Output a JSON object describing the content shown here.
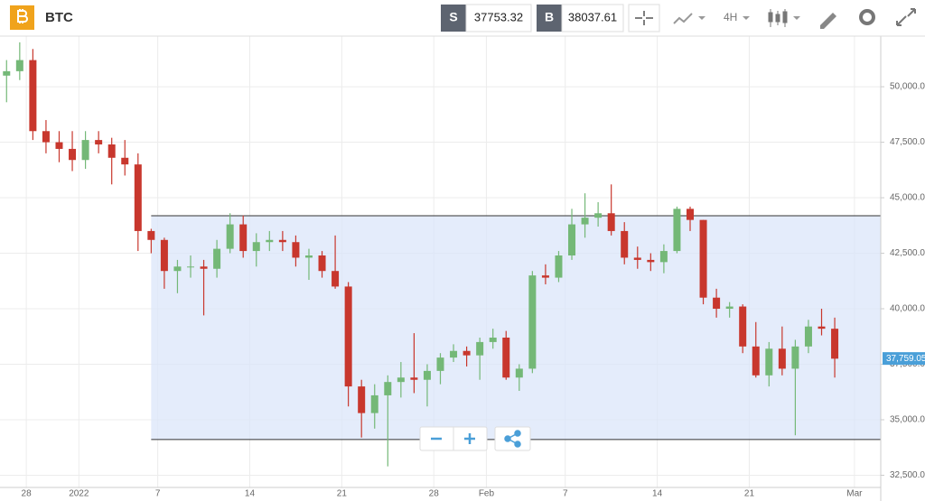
{
  "toolbar": {
    "symbol": "BTC",
    "sell_label": "S",
    "sell_price": "37753.32",
    "buy_label": "B",
    "buy_price": "38037.61",
    "interval": "4H"
  },
  "chart_data": {
    "type": "candlestick",
    "x": [
      "2021-12-26",
      "2021-12-27",
      "2021-12-28",
      "2021-12-29",
      "2021-12-30",
      "2021-12-31",
      "2022-01-01",
      "2022-01-02",
      "2022-01-03",
      "2022-01-04",
      "2022-01-05",
      "2022-01-06",
      "2022-01-07",
      "2022-01-08",
      "2022-01-09",
      "2022-01-10",
      "2022-01-11",
      "2022-01-12",
      "2022-01-13",
      "2022-01-14",
      "2022-01-15",
      "2022-01-16",
      "2022-01-17",
      "2022-01-18",
      "2022-01-19",
      "2022-01-20",
      "2022-01-21",
      "2022-01-22",
      "2022-01-23",
      "2022-01-24",
      "2022-01-25",
      "2022-01-26",
      "2022-01-27",
      "2022-01-28",
      "2022-01-29",
      "2022-01-30",
      "2022-01-31",
      "2022-02-01",
      "2022-02-02",
      "2022-02-03",
      "2022-02-04",
      "2022-02-05",
      "2022-02-06",
      "2022-02-07",
      "2022-02-08",
      "2022-02-09",
      "2022-02-10",
      "2022-02-11",
      "2022-02-12",
      "2022-02-13",
      "2022-02-14",
      "2022-02-15",
      "2022-02-16",
      "2022-02-17",
      "2022-02-18",
      "2022-02-19",
      "2022-02-20",
      "2022-02-21",
      "2022-02-22",
      "2022-02-23",
      "2022-02-24",
      "2022-02-25",
      "2022-02-26",
      "2022-02-27"
    ],
    "open": [
      50500,
      50700,
      51200,
      48000,
      47500,
      47200,
      46700,
      47600,
      47400,
      46800,
      46500,
      43500,
      43100,
      41700,
      41900,
      41900,
      41800,
      42700,
      43800,
      42600,
      43000,
      43100,
      43000,
      42300,
      42400,
      41700,
      41000,
      36500,
      35300,
      36100,
      36700,
      36900,
      36800,
      37200,
      37800,
      38100,
      37900,
      38500,
      38700,
      36900,
      37300,
      41500,
      41400,
      42400,
      43800,
      44100,
      44300,
      43500,
      42300,
      42200,
      42100,
      42600,
      44500,
      44000,
      40500,
      40000,
      40100,
      38300,
      37000,
      38200,
      37300,
      38300,
      39200,
      39100
    ],
    "high": [
      51200,
      52000,
      51700,
      48500,
      48000,
      48000,
      48000,
      48000,
      47700,
      47600,
      47000,
      43600,
      43200,
      42200,
      42400,
      42200,
      43100,
      44300,
      44200,
      43400,
      43500,
      43500,
      43300,
      42700,
      42600,
      43300,
      41200,
      36800,
      36600,
      37000,
      37600,
      38900,
      37500,
      38000,
      38400,
      38300,
      38700,
      39100,
      39000,
      37500,
      41700,
      42000,
      42600,
      44500,
      45200,
      44800,
      45600,
      43900,
      42800,
      42500,
      42900,
      44600,
      44600,
      44000,
      40900,
      40300,
      40200,
      39400,
      38500,
      39200,
      38600,
      39500,
      40000,
      39600
    ],
    "low": [
      49300,
      50300,
      47600,
      47000,
      46600,
      46200,
      46300,
      47000,
      45600,
      46000,
      42600,
      42500,
      40900,
      40700,
      41400,
      39700,
      41400,
      42500,
      42300,
      41900,
      42600,
      42600,
      41900,
      41300,
      41400,
      40900,
      35600,
      34200,
      34600,
      32900,
      36000,
      36200,
      35600,
      36600,
      37600,
      37400,
      36800,
      38200,
      36800,
      36300,
      37100,
      41100,
      41200,
      42200,
      43200,
      43700,
      43300,
      42000,
      41800,
      41700,
      41600,
      42500,
      43500,
      40200,
      39600,
      39600,
      38000,
      36900,
      36500,
      37000,
      34300,
      38000,
      38800,
      36900
    ],
    "close": [
      50700,
      51200,
      48000,
      47500,
      47200,
      46700,
      47600,
      47400,
      46800,
      46500,
      43500,
      43100,
      41700,
      41900,
      41900,
      41800,
      42700,
      43800,
      42600,
      43000,
      43100,
      43000,
      42300,
      42400,
      41700,
      41000,
      36500,
      35300,
      36100,
      36700,
      36900,
      36800,
      37200,
      37800,
      38100,
      37900,
      38500,
      38700,
      36900,
      37300,
      41500,
      41400,
      42400,
      43800,
      44100,
      44300,
      43500,
      42300,
      42200,
      42100,
      42600,
      44500,
      44000,
      40500,
      40000,
      40100,
      38300,
      37000,
      38200,
      37300,
      38300,
      39200,
      39100,
      37750
    ],
    "up_color": "#74b877",
    "down_color": "#c8372d",
    "xlim": [
      "2021-12-26",
      "2022-03-03"
    ],
    "xticks": [
      {
        "value": "2021-12-28",
        "label": "28"
      },
      {
        "value": "2022-01-01",
        "label": "2022"
      },
      {
        "value": "2022-01-07",
        "label": "7"
      },
      {
        "value": "2022-01-14",
        "label": "14"
      },
      {
        "value": "2022-01-21",
        "label": "21"
      },
      {
        "value": "2022-01-28",
        "label": "28"
      },
      {
        "value": "2022-02-01",
        "label": "Feb"
      },
      {
        "value": "2022-02-07",
        "label": "7"
      },
      {
        "value": "2022-02-14",
        "label": "14"
      },
      {
        "value": "2022-02-21",
        "label": "21"
      },
      {
        "value": "2022-03-01",
        "label": "Mar"
      }
    ],
    "ylim": [
      31950,
      52280
    ],
    "yticks": [
      {
        "value": 32500,
        "label": "32,500.00"
      },
      {
        "value": 35000,
        "label": "35,000.00"
      },
      {
        "value": 37500,
        "label": "37,500.00"
      },
      {
        "value": 40000,
        "label": "40,000.00"
      },
      {
        "value": 42500,
        "label": "42,500.00"
      },
      {
        "value": 45000,
        "label": "45,000.00"
      },
      {
        "value": 47500,
        "label": "47,500.00"
      },
      {
        "value": 50000,
        "label": "50,000.00"
      }
    ],
    "grid": true,
    "last_price": {
      "value": 37759.05,
      "label": "37,759.05",
      "color": "#4a9fd8"
    },
    "rectangle": {
      "start": "2022-01-06T12:00",
      "top": 44190,
      "bottom": 34110,
      "fill": "#dbe6fa"
    }
  }
}
